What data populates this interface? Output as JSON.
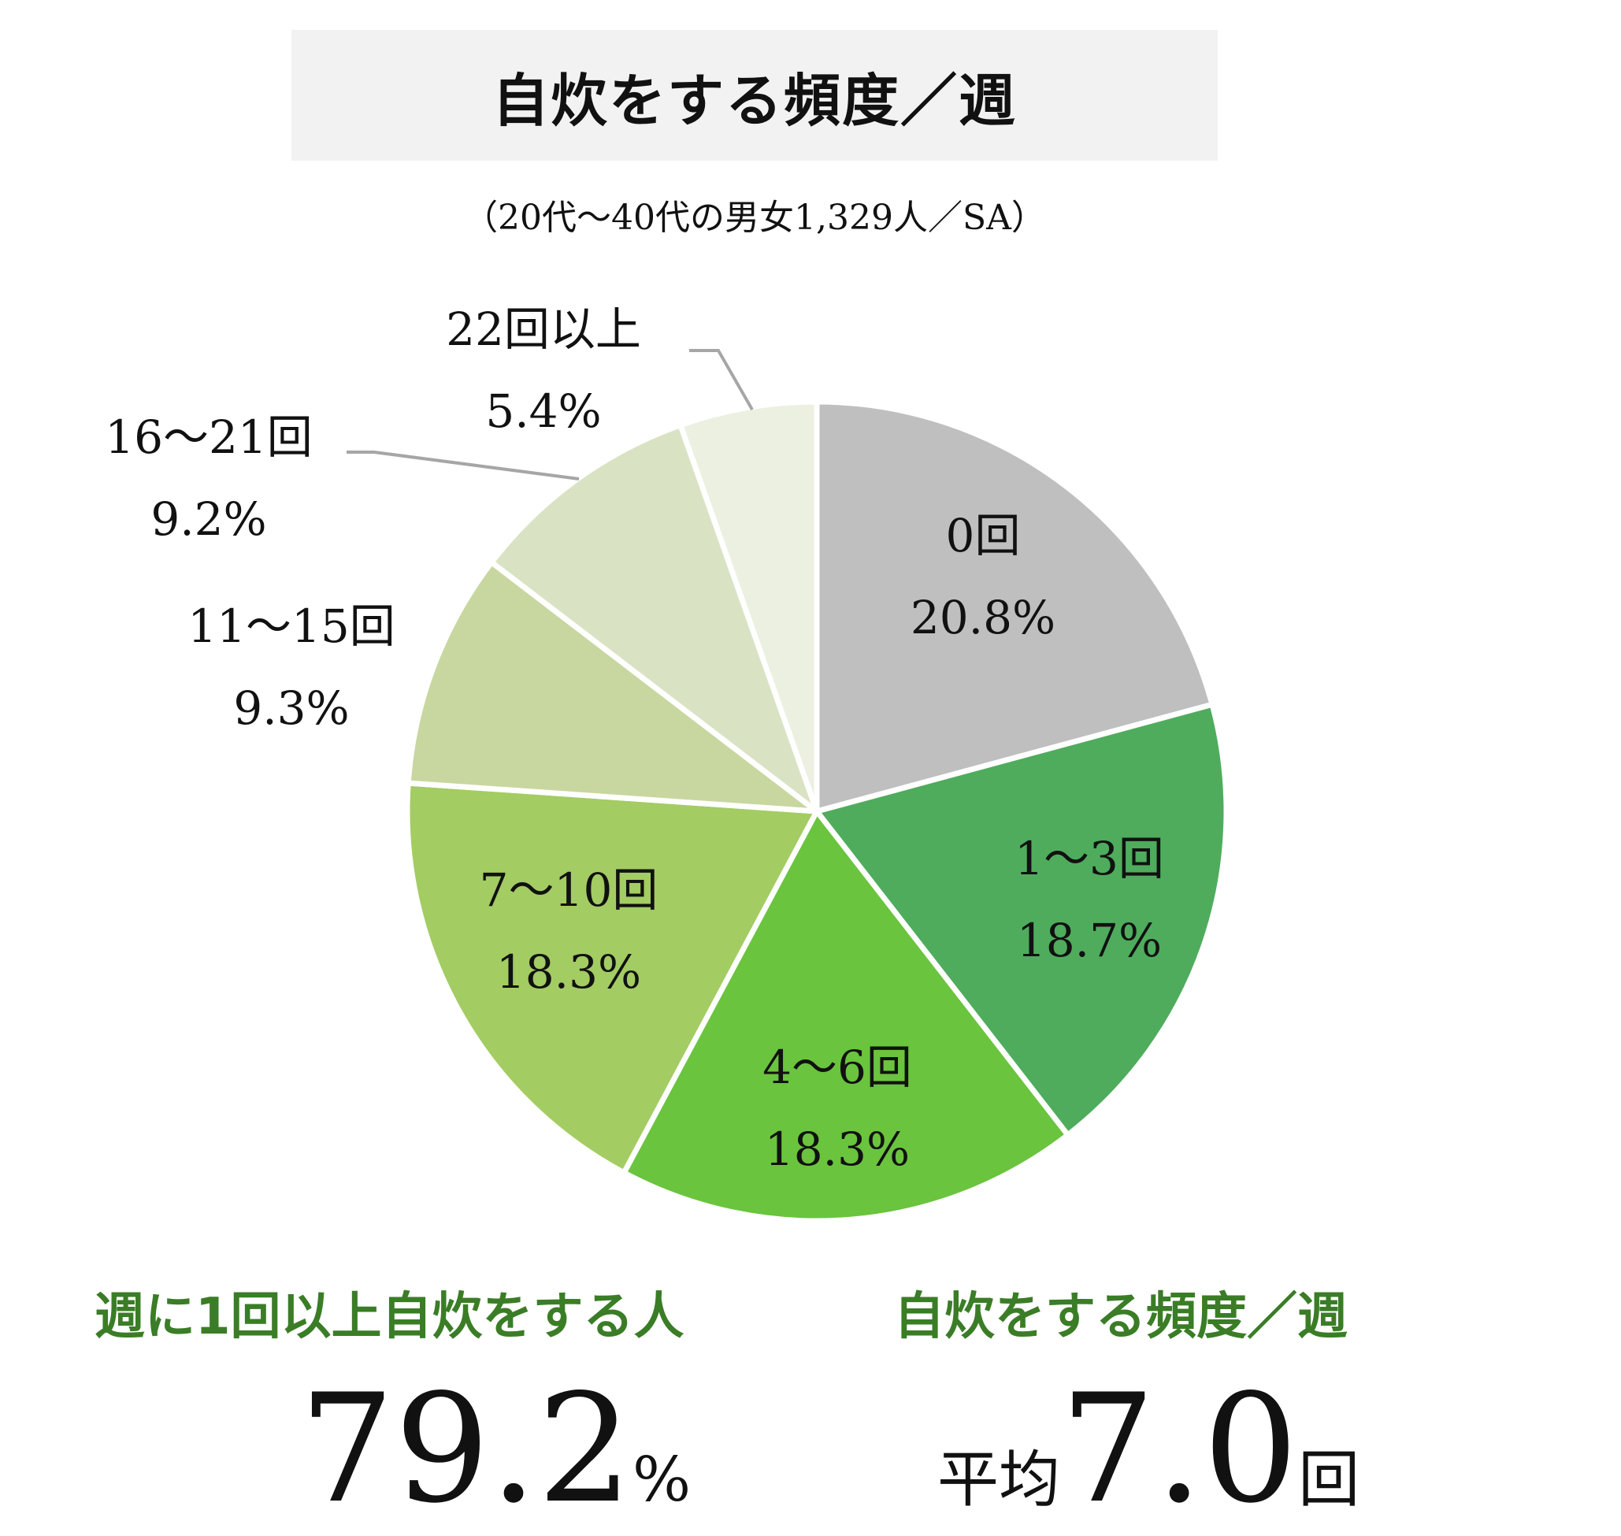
{
  "title": "自炊をする頻度／週",
  "subtitle": "（20代～40代の男女1,329人／SA）",
  "chart_data": {
    "type": "pie",
    "start_angle": "12 o'clock",
    "direction": "clockwise",
    "slices": [
      {
        "label": "0回",
        "value": 20.8,
        "value_text": "20.8%",
        "color": "#bfbfbf"
      },
      {
        "label": "1～3回",
        "value": 18.7,
        "value_text": "18.7%",
        "color": "#4fac5d"
      },
      {
        "label": "4～6回",
        "value": 18.3,
        "value_text": "18.3%",
        "color": "#6ac43e"
      },
      {
        "label": "7～10回",
        "value": 18.3,
        "value_text": "18.3%",
        "color": "#a3cc63"
      },
      {
        "label": "11～15回",
        "value": 9.3,
        "value_text": "9.3%",
        "color": "#c8d7a0"
      },
      {
        "label": "16～21回",
        "value": 9.2,
        "value_text": "9.2%",
        "color": "#d9e3c4"
      },
      {
        "label": "22回以上",
        "value": 5.4,
        "value_text": "5.4%",
        "color": "#ebf0e1"
      }
    ]
  },
  "stats": {
    "left_caption": "週に1回以上自炊をする人",
    "left_value": "79.2",
    "left_unit": "%",
    "right_caption": "自炊をする頻度／週",
    "right_prefix": "平均",
    "right_value": "7.0",
    "right_unit": "回"
  },
  "colors": {
    "caption_green": "#3a7d26",
    "leader_line": "#a6a6a6",
    "slice_border": "#ffffff"
  }
}
